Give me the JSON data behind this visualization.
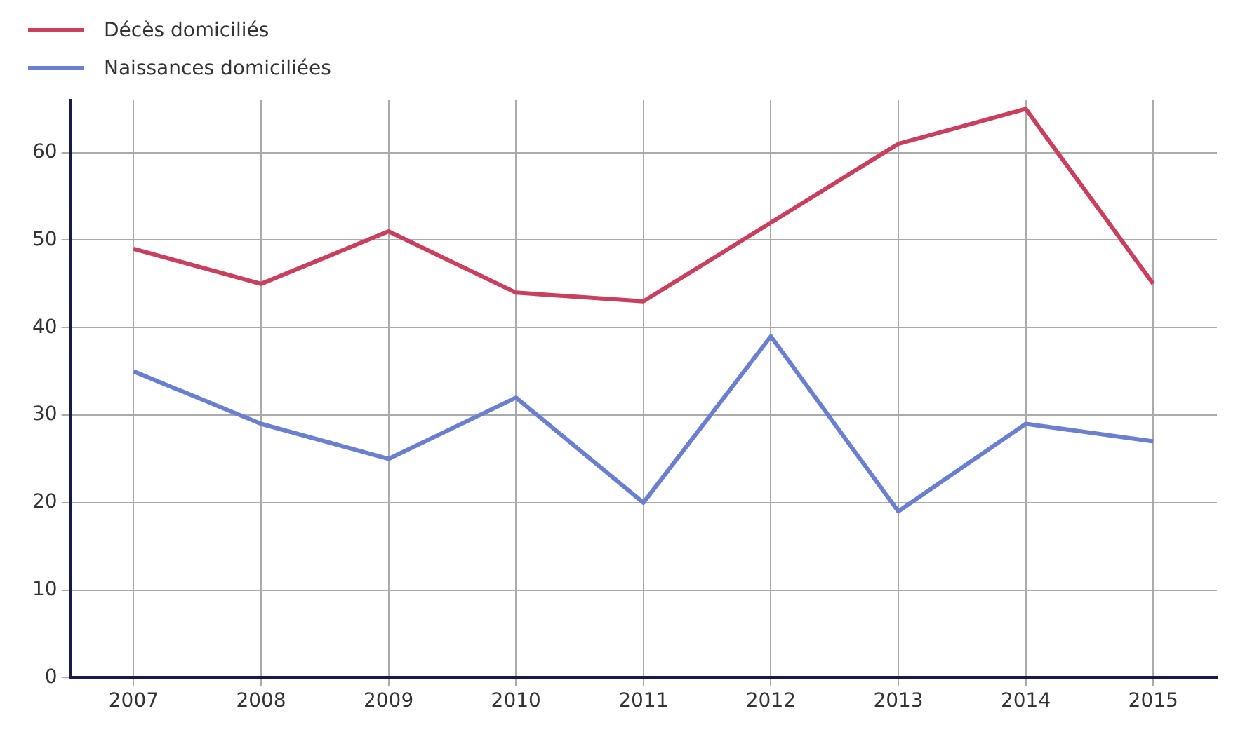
{
  "chart_data": {
    "type": "line",
    "categories": [
      "2007",
      "2008",
      "2009",
      "2010",
      "2011",
      "2012",
      "2013",
      "2014",
      "2015"
    ],
    "series": [
      {
        "name": "Décès domiciliés",
        "color": "#c8405e",
        "values": [
          49,
          45,
          51,
          44,
          43,
          52,
          61,
          65,
          45
        ]
      },
      {
        "name": "Naissances domiciliées",
        "color": "#6a7fcf",
        "values": [
          35,
          29,
          25,
          32,
          20,
          39,
          19,
          29,
          27
        ]
      }
    ],
    "ylim": [
      0,
      66
    ],
    "yticks": [
      0,
      10,
      20,
      30,
      40,
      50,
      60
    ],
    "grid": true,
    "legend": "top left",
    "marker": "none",
    "line_style": "solid"
  }
}
